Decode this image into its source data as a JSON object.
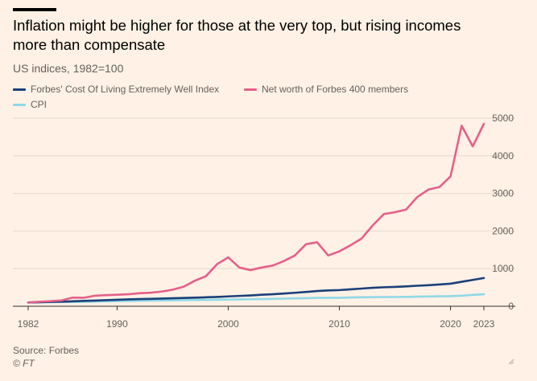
{
  "header": {
    "title": "Inflation might be higher for those at the very top, but rising incomes more than compensate",
    "subtitle": "US indices, 1982=100"
  },
  "footer": {
    "source": "Source: Forbes",
    "copyright": "© FT"
  },
  "colors": {
    "background": "#fff1e5",
    "gridline": "#e5d8cd",
    "axis": "#33302e"
  },
  "chart_data": {
    "type": "line",
    "title": "Inflation might be higher for those at the very top, but rising incomes more than compensate",
    "subtitle": "US indices, 1982=100",
    "xlabel": "",
    "ylabel": "",
    "xlim": [
      1982,
      2023
    ],
    "ylim": [
      0,
      5000
    ],
    "y_ticks": [
      0,
      1000,
      2000,
      3000,
      4000,
      5000
    ],
    "x_ticks": [
      1982,
      1990,
      2000,
      2010,
      2020,
      2023
    ],
    "y_axis_side": "right",
    "grid": true,
    "legend_placement": "top-left",
    "series": [
      {
        "name": "Forbes' Cost Of Living Extremely Well Index",
        "color": "#1a3f7a",
        "x": [
          1982,
          1983,
          1984,
          1985,
          1986,
          1987,
          1988,
          1989,
          1990,
          1991,
          1992,
          1993,
          1994,
          1995,
          1996,
          1997,
          1998,
          1999,
          2000,
          2001,
          2002,
          2003,
          2004,
          2005,
          2006,
          2007,
          2008,
          2009,
          2010,
          2011,
          2012,
          2013,
          2014,
          2015,
          2016,
          2017,
          2018,
          2019,
          2020,
          2021,
          2022,
          2023
        ],
        "values": [
          100,
          108,
          115,
          122,
          132,
          142,
          152,
          162,
          172,
          183,
          190,
          197,
          205,
          212,
          220,
          228,
          238,
          248,
          262,
          275,
          288,
          305,
          320,
          338,
          358,
          380,
          405,
          420,
          430,
          450,
          470,
          490,
          505,
          515,
          528,
          545,
          560,
          578,
          600,
          650,
          700,
          750
        ]
      },
      {
        "name": "Net worth of Forbes 400 members",
        "color": "#e5608a",
        "x": [
          1982,
          1983,
          1984,
          1985,
          1986,
          1987,
          1988,
          1989,
          1990,
          1991,
          1992,
          1993,
          1994,
          1995,
          1996,
          1997,
          1998,
          1999,
          2000,
          2001,
          2002,
          2003,
          2004,
          2005,
          2006,
          2007,
          2008,
          2009,
          2010,
          2011,
          2012,
          2013,
          2014,
          2015,
          2016,
          2017,
          2018,
          2019,
          2020,
          2021,
          2022,
          2023
        ],
        "values": [
          100,
          120,
          135,
          155,
          230,
          225,
          280,
          295,
          305,
          320,
          345,
          360,
          390,
          440,
          520,
          680,
          800,
          1120,
          1300,
          1030,
          960,
          1030,
          1080,
          1200,
          1350,
          1650,
          1700,
          1350,
          1460,
          1620,
          1800,
          2150,
          2450,
          2500,
          2570,
          2900,
          3100,
          3170,
          3450,
          4800,
          4250,
          4850
        ]
      },
      {
        "name": "CPI",
        "color": "#8fd8e8",
        "x": [
          1982,
          1983,
          1984,
          1985,
          1986,
          1987,
          1988,
          1989,
          1990,
          1991,
          1992,
          1993,
          1994,
          1995,
          1996,
          1997,
          1998,
          1999,
          2000,
          2001,
          2002,
          2003,
          2004,
          2005,
          2006,
          2007,
          2008,
          2009,
          2010,
          2011,
          2012,
          2013,
          2014,
          2015,
          2016,
          2017,
          2018,
          2019,
          2020,
          2021,
          2022,
          2023
        ],
        "values": [
          100,
          103,
          108,
          112,
          114,
          118,
          123,
          128,
          135,
          141,
          145,
          150,
          154,
          158,
          163,
          167,
          170,
          173,
          179,
          184,
          187,
          191,
          196,
          203,
          209,
          215,
          223,
          223,
          226,
          233,
          238,
          241,
          245,
          246,
          249,
          254,
          260,
          265,
          268,
          280,
          303,
          320
        ]
      }
    ]
  }
}
